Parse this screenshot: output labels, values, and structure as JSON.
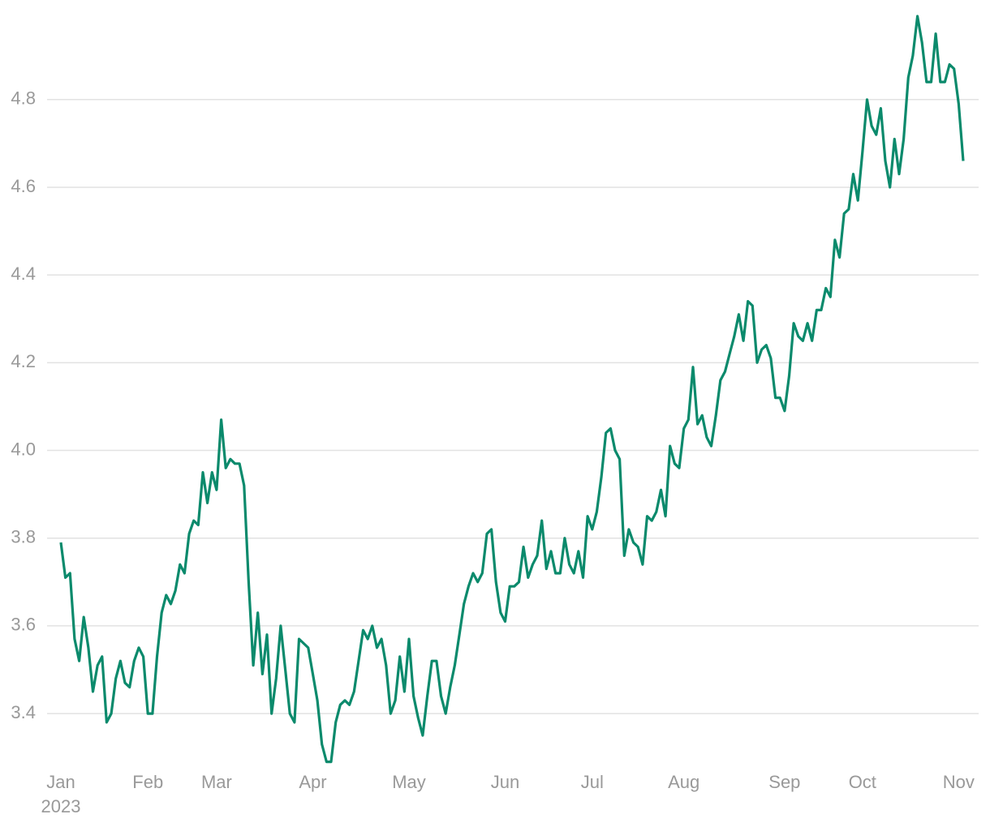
{
  "chart_data": {
    "type": "line",
    "categories": [
      "Jan",
      null,
      null,
      null,
      null,
      null,
      null,
      null,
      null,
      null,
      null,
      null,
      null,
      null,
      null,
      null,
      null,
      null,
      null,
      "Feb",
      null,
      null,
      null,
      null,
      null,
      null,
      null,
      null,
      null,
      null,
      null,
      null,
      null,
      null,
      "Mar",
      null,
      null,
      null,
      null,
      null,
      null,
      null,
      null,
      null,
      null,
      null,
      null,
      null,
      null,
      null,
      null,
      null,
      null,
      null,
      null,
      "Apr",
      null,
      null,
      null,
      null,
      null,
      null,
      null,
      null,
      null,
      null,
      null,
      null,
      null,
      null,
      null,
      null,
      null,
      null,
      null,
      null,
      "May",
      null,
      null,
      null,
      null,
      null,
      null,
      null,
      null,
      null,
      null,
      null,
      null,
      null,
      null,
      null,
      null,
      null,
      null,
      null,
      null,
      "Jun",
      null,
      null,
      null,
      null,
      null,
      null,
      null,
      null,
      null,
      null,
      null,
      null,
      null,
      null,
      null,
      null,
      null,
      null,
      "Jul",
      null,
      null,
      null,
      null,
      null,
      null,
      null,
      null,
      null,
      null,
      null,
      null,
      null,
      null,
      null,
      null,
      null,
      null,
      null,
      "Aug",
      null,
      null,
      null,
      null,
      null,
      null,
      null,
      null,
      null,
      null,
      null,
      null,
      null,
      null,
      null,
      null,
      null,
      null,
      null,
      null,
      null,
      "Sep",
      null,
      null,
      null,
      null,
      null,
      null,
      null,
      null,
      null,
      null,
      null,
      null,
      null,
      null,
      null,
      null,
      "Oct",
      null,
      null,
      null,
      null,
      null,
      null,
      null,
      null,
      null,
      null,
      null,
      null,
      null,
      null,
      null,
      null,
      null,
      null,
      null,
      null,
      "Nov",
      null
    ],
    "year_label": "2023",
    "series": [
      {
        "color": "#0b8a6c",
        "values": [
          3.79,
          3.71,
          3.72,
          3.57,
          3.52,
          3.62,
          3.55,
          3.45,
          3.51,
          3.53,
          3.38,
          3.4,
          3.48,
          3.52,
          3.47,
          3.46,
          3.52,
          3.55,
          3.53,
          3.4,
          3.4,
          3.53,
          3.63,
          3.67,
          3.65,
          3.68,
          3.74,
          3.72,
          3.81,
          3.84,
          3.83,
          3.95,
          3.88,
          3.95,
          3.91,
          4.07,
          3.96,
          3.98,
          3.97,
          3.97,
          3.92,
          3.7,
          3.51,
          3.63,
          3.49,
          3.58,
          3.4,
          3.48,
          3.6,
          3.5,
          3.4,
          3.38,
          3.57,
          3.56,
          3.55,
          3.49,
          3.43,
          3.33,
          3.29,
          3.29,
          3.38,
          3.42,
          3.43,
          3.42,
          3.45,
          3.52,
          3.59,
          3.57,
          3.6,
          3.55,
          3.57,
          3.51,
          3.4,
          3.43,
          3.53,
          3.45,
          3.57,
          3.44,
          3.39,
          3.35,
          3.44,
          3.52,
          3.52,
          3.44,
          3.4,
          3.46,
          3.51,
          3.58,
          3.65,
          3.69,
          3.72,
          3.7,
          3.72,
          3.81,
          3.82,
          3.7,
          3.63,
          3.61,
          3.69,
          3.69,
          3.7,
          3.78,
          3.71,
          3.74,
          3.76,
          3.84,
          3.73,
          3.77,
          3.72,
          3.72,
          3.8,
          3.74,
          3.72,
          3.77,
          3.71,
          3.85,
          3.82,
          3.86,
          3.94,
          4.04,
          4.05,
          4.0,
          3.98,
          3.76,
          3.82,
          3.79,
          3.78,
          3.74,
          3.85,
          3.84,
          3.86,
          3.91,
          3.85,
          4.01,
          3.97,
          3.96,
          4.05,
          4.07,
          4.19,
          4.06,
          4.08,
          4.03,
          4.01,
          4.08,
          4.16,
          4.18,
          4.22,
          4.26,
          4.31,
          4.25,
          4.34,
          4.33,
          4.2,
          4.23,
          4.24,
          4.21,
          4.12,
          4.12,
          4.09,
          4.17,
          4.29,
          4.26,
          4.25,
          4.29,
          4.25,
          4.32,
          4.32,
          4.37,
          4.35,
          4.48,
          4.44,
          4.54,
          4.55,
          4.63,
          4.57,
          4.68,
          4.8,
          4.74,
          4.72,
          4.78,
          4.66,
          4.6,
          4.71,
          4.63,
          4.71,
          4.85,
          4.9,
          4.99,
          4.93,
          4.84,
          4.84,
          4.95,
          4.84,
          4.84,
          4.88,
          4.87,
          4.79,
          4.66
        ]
      }
    ],
    "ylim": [
      3.28,
      4.99
    ],
    "yticks": [
      3.4,
      3.6,
      3.8,
      {
        "value": 4,
        "label": "4.0"
      },
      4.2,
      4.4,
      4.6,
      4.8
    ],
    "grid": true
  }
}
